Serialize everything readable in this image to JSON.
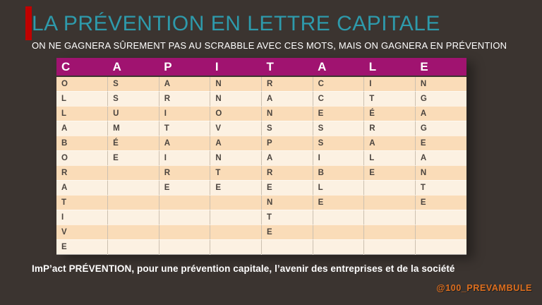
{
  "slide": {
    "title": "LA PRÉVENTION EN LETTRE CAPITALE",
    "subtitle": "ON NE GAGNERA SÛREMENT PAS AU SCRABBLE AVEC CES MOTS, MAIS ON GAGNERA EN PRÉVENTION",
    "footer": "ImP’act PRÉVENTION, pour une prévention capitale, l’avenir des entreprises et de la société",
    "handle": "@100_PREVAMBULE"
  },
  "colors": {
    "background": "#3B3430",
    "title": "#2E9AAB",
    "subtitle": "#FFFFFF",
    "header_bg": "#A01370",
    "header_text": "#FFFFFF",
    "row_odd": "#FADCB8",
    "row_even": "#FCF1E2",
    "cell_text": "#4B443E",
    "accent_bar": "#C00000",
    "handle": "#DD6E1E"
  },
  "table": {
    "header": [
      "C",
      "A",
      "P",
      "I",
      "T",
      "A",
      "L",
      "E"
    ],
    "words": [
      "COLLABORATIVE",
      "ASSUMÉE",
      "PARITAIRE",
      "INNOVANTE",
      "TRANSPARENTE",
      "ACCESSIBLE",
      "LITÉRALE",
      "ENGAGEANTE"
    ],
    "rows": [
      [
        "O",
        "S",
        "A",
        "N",
        "R",
        "C",
        "I",
        "N"
      ],
      [
        "L",
        "S",
        "R",
        "N",
        "A",
        "C",
        "T",
        "G"
      ],
      [
        "L",
        "U",
        "I",
        "O",
        "N",
        "E",
        "É",
        "A"
      ],
      [
        "A",
        "M",
        "T",
        "V",
        "S",
        "S",
        "R",
        "G"
      ],
      [
        "B",
        "É",
        "A",
        "A",
        "P",
        "S",
        "A",
        "E"
      ],
      [
        "O",
        "E",
        "I",
        "N",
        "A",
        "I",
        "L",
        "A"
      ],
      [
        "R",
        "",
        "R",
        "T",
        "R",
        "B",
        "E",
        "N"
      ],
      [
        "A",
        "",
        "E",
        "E",
        "E",
        "L",
        "",
        "T"
      ],
      [
        "T",
        "",
        "",
        "",
        "N",
        "E",
        "",
        "E"
      ],
      [
        "I",
        "",
        "",
        "",
        "T",
        "",
        "",
        ""
      ],
      [
        "V",
        "",
        "",
        "",
        "E",
        "",
        "",
        ""
      ],
      [
        "E",
        "",
        "",
        "",
        "",
        "",
        "",
        ""
      ]
    ]
  }
}
